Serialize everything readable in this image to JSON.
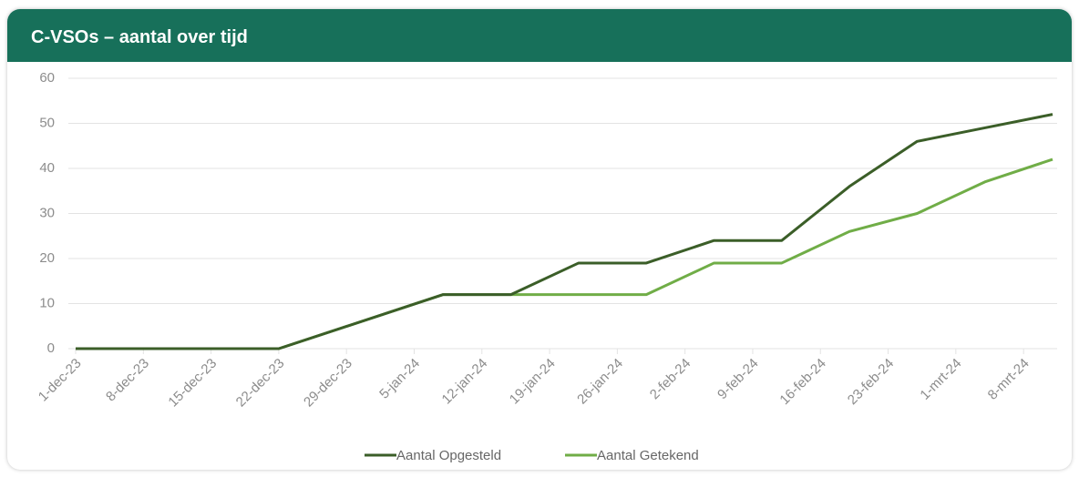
{
  "chart_data": {
    "type": "line",
    "title": "C-VSOs – aantal over tijd",
    "x": [
      0,
      7,
      14,
      21,
      38,
      45,
      52,
      59,
      66,
      73,
      80,
      87,
      94,
      101
    ],
    "xlim": [
      0,
      101
    ],
    "xticks": [
      {
        "value": 0,
        "label": "1-dec-23"
      },
      {
        "value": 7,
        "label": "8-dec-23"
      },
      {
        "value": 14,
        "label": "15-dec-23"
      },
      {
        "value": 21,
        "label": "22-dec-23"
      },
      {
        "value": 28,
        "label": "29-dec-23"
      },
      {
        "value": 35,
        "label": "5-jan-24"
      },
      {
        "value": 42,
        "label": "12-jan-24"
      },
      {
        "value": 49,
        "label": "19-jan-24"
      },
      {
        "value": 56,
        "label": "26-jan-24"
      },
      {
        "value": 63,
        "label": "2-feb-24"
      },
      {
        "value": 70,
        "label": "9-feb-24"
      },
      {
        "value": 77,
        "label": "16-feb-24"
      },
      {
        "value": 84,
        "label": "23-feb-24"
      },
      {
        "value": 91,
        "label": "1-mrt-24"
      },
      {
        "value": 98,
        "label": "8-mrt-24"
      }
    ],
    "series": [
      {
        "name": "Aantal Opgesteld",
        "color": "#3b5e28",
        "values": [
          0,
          0,
          0,
          0,
          12,
          12,
          19,
          19,
          24,
          24,
          36,
          46,
          49,
          52
        ]
      },
      {
        "name": "Aantal Getekend",
        "color": "#70ad47",
        "values": [
          0,
          0,
          0,
          0,
          12,
          12,
          12,
          12,
          19,
          19,
          26,
          30,
          37,
          42
        ]
      }
    ],
    "ylim": [
      0,
      60
    ],
    "yticks": [
      0,
      10,
      20,
      30,
      40,
      50,
      60
    ],
    "grid": true,
    "legend": "bottom"
  }
}
